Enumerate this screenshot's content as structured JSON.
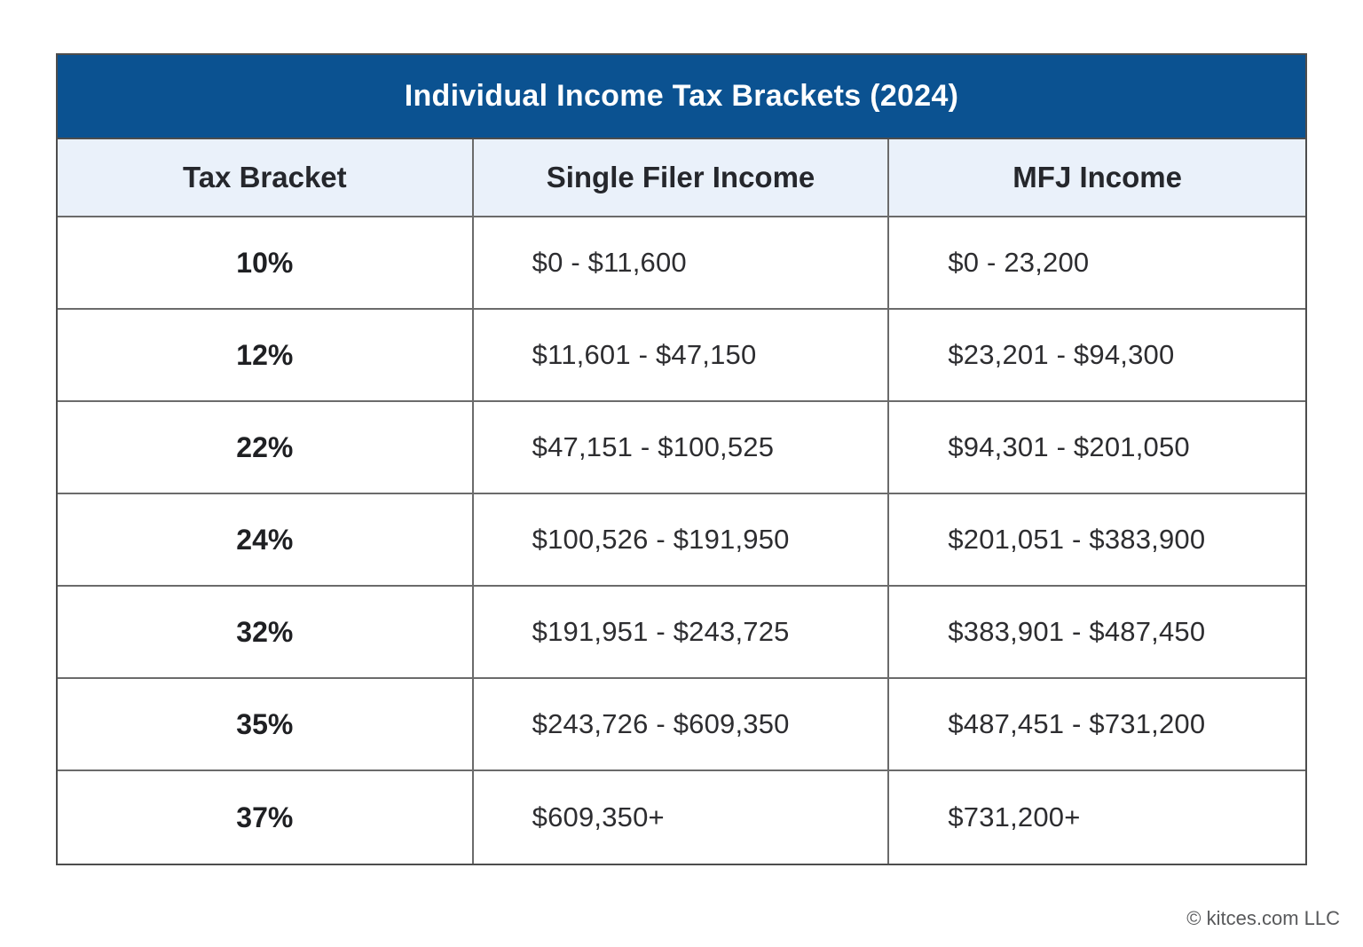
{
  "table": {
    "title": "Individual Income Tax Brackets (2024)",
    "headers": [
      "Tax Bracket",
      "Single Filer Income",
      "MFJ Income"
    ],
    "rows": [
      {
        "bracket": "10%",
        "single": "$0 - $11,600",
        "mfj": "$0 - 23,200"
      },
      {
        "bracket": "12%",
        "single": "$11,601 - $47,150",
        "mfj": "$23,201 - $94,300"
      },
      {
        "bracket": "22%",
        "single": "$47,151 - $100,525",
        "mfj": "$94,301 - $201,050"
      },
      {
        "bracket": "24%",
        "single": "$100,526 - $191,950",
        "mfj": "$201,051 - $383,900"
      },
      {
        "bracket": "32%",
        "single": "$191,951 - $243,725",
        "mfj": "$383,901 - $487,450"
      },
      {
        "bracket": "35%",
        "single": "$243,726 - $609,350",
        "mfj": "$487,451 - $731,200"
      },
      {
        "bracket": "37%",
        "single": "$609,350+",
        "mfj": "$731,200+"
      }
    ]
  },
  "footer": {
    "copyright": "© kitces.com LLC"
  },
  "colors": {
    "title_bg": "#0b5291",
    "title_text": "#ffffff",
    "header_bg": "#eaf1fa",
    "border": "#6b6b6b",
    "outer_border": "#4d4d4d",
    "body_text": "#2d2d30",
    "footer_text": "#58595b"
  },
  "chart_data": {
    "type": "table",
    "title": "Individual Income Tax Brackets (2024)",
    "columns": [
      "Tax Bracket",
      "Single Filer Income",
      "MFJ Income"
    ],
    "rows": [
      [
        "10%",
        "$0 - $11,600",
        "$0 - 23,200"
      ],
      [
        "12%",
        "$11,601 - $47,150",
        "$23,201 - $94,300"
      ],
      [
        "22%",
        "$47,151 - $100,525",
        "$94,301 - $201,050"
      ],
      [
        "24%",
        "$100,526 - $191,950",
        "$201,051 - $383,900"
      ],
      [
        "32%",
        "$191,951 - $243,725",
        "$383,901 - $487,450"
      ],
      [
        "35%",
        "$243,726 - $609,350",
        "$487,451 - $731,200"
      ],
      [
        "37%",
        "$609,350+",
        "$731,200+"
      ]
    ],
    "legend_position": "none",
    "grid": true
  }
}
